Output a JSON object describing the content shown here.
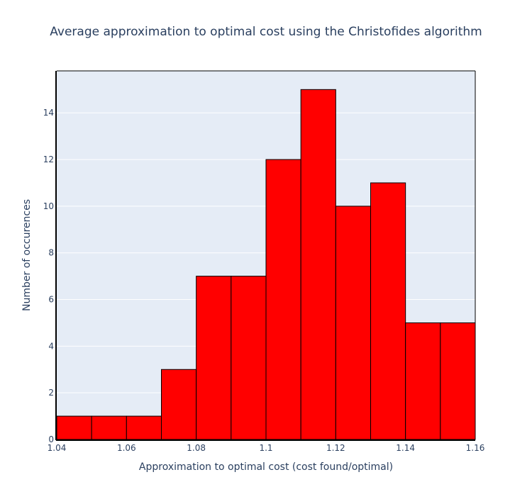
{
  "chart_data": {
    "type": "bar",
    "title": "Average approximation to optimal cost using the Christofides algorithm",
    "xlabel": "Approximation to optimal cost (cost found/optimal)",
    "ylabel": "Number of occurences",
    "bin_edges": [
      1.04,
      1.05,
      1.06,
      1.07,
      1.08,
      1.09,
      1.1,
      1.11,
      1.12,
      1.13,
      1.14,
      1.15,
      1.16
    ],
    "values": [
      1,
      1,
      1,
      3,
      7,
      7,
      12,
      15,
      10,
      11,
      5,
      5
    ],
    "xlim": [
      1.04,
      1.16
    ],
    "ylim": [
      0,
      15.8
    ],
    "x_ticks": [
      "1.04",
      "1.06",
      "1.08",
      "1.1",
      "1.12",
      "1.14",
      "1.16"
    ],
    "y_ticks": [
      "0",
      "2",
      "4",
      "6",
      "8",
      "10",
      "12",
      "14"
    ],
    "grid": true,
    "colors": {
      "bar_fill": "#ff0000",
      "bar_stroke": "#000000",
      "plot_background": "#e5ecf6",
      "gridline": "#ffffff",
      "text": "#2a3f5f"
    }
  }
}
